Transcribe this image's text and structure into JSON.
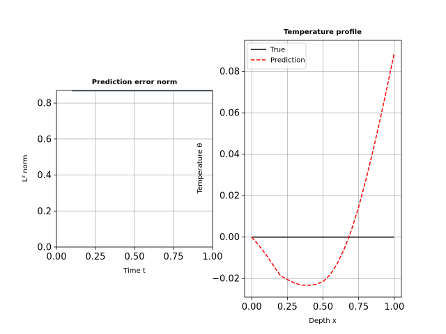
{
  "chart_data": [
    {
      "type": "line",
      "title": "Prediction error norm",
      "xlabel": "Time t",
      "ylabel": "L² norm",
      "xlim": [
        0.0,
        1.0
      ],
      "ylim": [
        0.0,
        0.87
      ],
      "xticks": [
        "0.00",
        "0.25",
        "0.50",
        "0.75",
        "1.00"
      ],
      "yticks": [
        "0.0",
        "0.2",
        "0.4",
        "0.6",
        "0.8"
      ],
      "grid": true,
      "series": [
        {
          "color": "#2e4a5a",
          "x": [
            0.1,
            1.0
          ],
          "y": [
            0.868,
            0.868
          ]
        }
      ]
    },
    {
      "type": "line",
      "title": "Temperature profile",
      "xlabel": "Depth x",
      "ylabel": "Temperature θ",
      "xlim": [
        -0.05,
        1.05
      ],
      "ylim": [
        -0.029,
        0.095
      ],
      "xticks": [
        "0.00",
        "0.25",
        "0.50",
        "0.75",
        "1.00"
      ],
      "yticks": [
        "−0.02",
        "0.00",
        "0.02",
        "0.04",
        "0.06",
        "0.08"
      ],
      "grid": true,
      "legend_position": "top-left",
      "series": [
        {
          "name": "True",
          "color": "#000000",
          "style": "solid",
          "x": [
            0.0,
            1.0
          ],
          "y": [
            0.0,
            0.0
          ]
        },
        {
          "name": "Prediction",
          "color": "#ff0000",
          "style": "dashed",
          "x": [
            0.0,
            0.05,
            0.1,
            0.15,
            0.2,
            0.25,
            0.3,
            0.35,
            0.4,
            0.45,
            0.5,
            0.55,
            0.6,
            0.65,
            0.7,
            0.75,
            0.8,
            0.85,
            0.9,
            0.95,
            1.0
          ],
          "y": [
            0.0,
            -0.004,
            -0.0085,
            -0.0135,
            -0.0185,
            -0.0205,
            -0.0222,
            -0.0232,
            -0.0233,
            -0.0228,
            -0.0215,
            -0.0182,
            -0.0128,
            -0.0055,
            0.0035,
            0.0145,
            0.0275,
            0.0415,
            0.0565,
            0.0725,
            0.089
          ]
        }
      ]
    }
  ]
}
